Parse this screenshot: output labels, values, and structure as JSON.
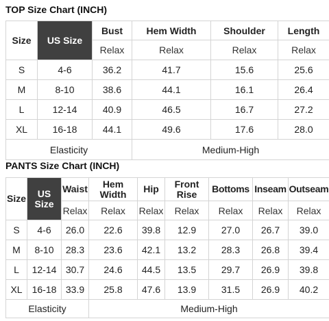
{
  "top": {
    "title": "TOP Size Chart (INCH)",
    "size_header": "Size",
    "us_size_header": "US Size",
    "columns": [
      "Bust",
      "Hem Width",
      "Shoulder",
      "Length"
    ],
    "subheaders": [
      "Relax",
      "Relax",
      "Relax",
      "Relax"
    ],
    "rows": [
      {
        "size": "S",
        "us": "4-6",
        "values": [
          "36.2",
          "41.7",
          "15.6",
          "25.6"
        ]
      },
      {
        "size": "M",
        "us": "8-10",
        "values": [
          "38.6",
          "44.1",
          "16.1",
          "26.4"
        ]
      },
      {
        "size": "L",
        "us": "12-14",
        "values": [
          "40.9",
          "46.5",
          "16.7",
          "27.2"
        ]
      },
      {
        "size": "XL",
        "us": "16-18",
        "values": [
          "44.1",
          "49.6",
          "17.6",
          "28.0"
        ]
      }
    ],
    "footer_label": "Elasticity",
    "footer_value": "Medium-High"
  },
  "pants": {
    "title": "PANTS Size Chart (INCH)",
    "size_header": "Size",
    "us_size_header": "US Size",
    "columns": [
      "Waist",
      "Hem Width",
      "Hip",
      "Front Rise",
      "Bottoms",
      "Inseam",
      "Outseam"
    ],
    "subheaders": [
      "Relax",
      "Relax",
      "Relax",
      "Relax",
      "Relax",
      "Relax",
      "Relax"
    ],
    "rows": [
      {
        "size": "S",
        "us": "4-6",
        "values": [
          "26.0",
          "22.6",
          "39.8",
          "12.9",
          "27.0",
          "26.7",
          "39.0"
        ]
      },
      {
        "size": "M",
        "us": "8-10",
        "values": [
          "28.3",
          "23.6",
          "42.1",
          "13.2",
          "28.3",
          "26.8",
          "39.4"
        ]
      },
      {
        "size": "L",
        "us": "12-14",
        "values": [
          "30.7",
          "24.6",
          "44.5",
          "13.5",
          "29.7",
          "26.9",
          "39.8"
        ]
      },
      {
        "size": "XL",
        "us": "16-18",
        "values": [
          "33.9",
          "25.8",
          "47.6",
          "13.9",
          "31.5",
          "26.9",
          "40.2"
        ]
      }
    ],
    "footer_label": "Elasticity",
    "footer_value": "Medium-High"
  }
}
